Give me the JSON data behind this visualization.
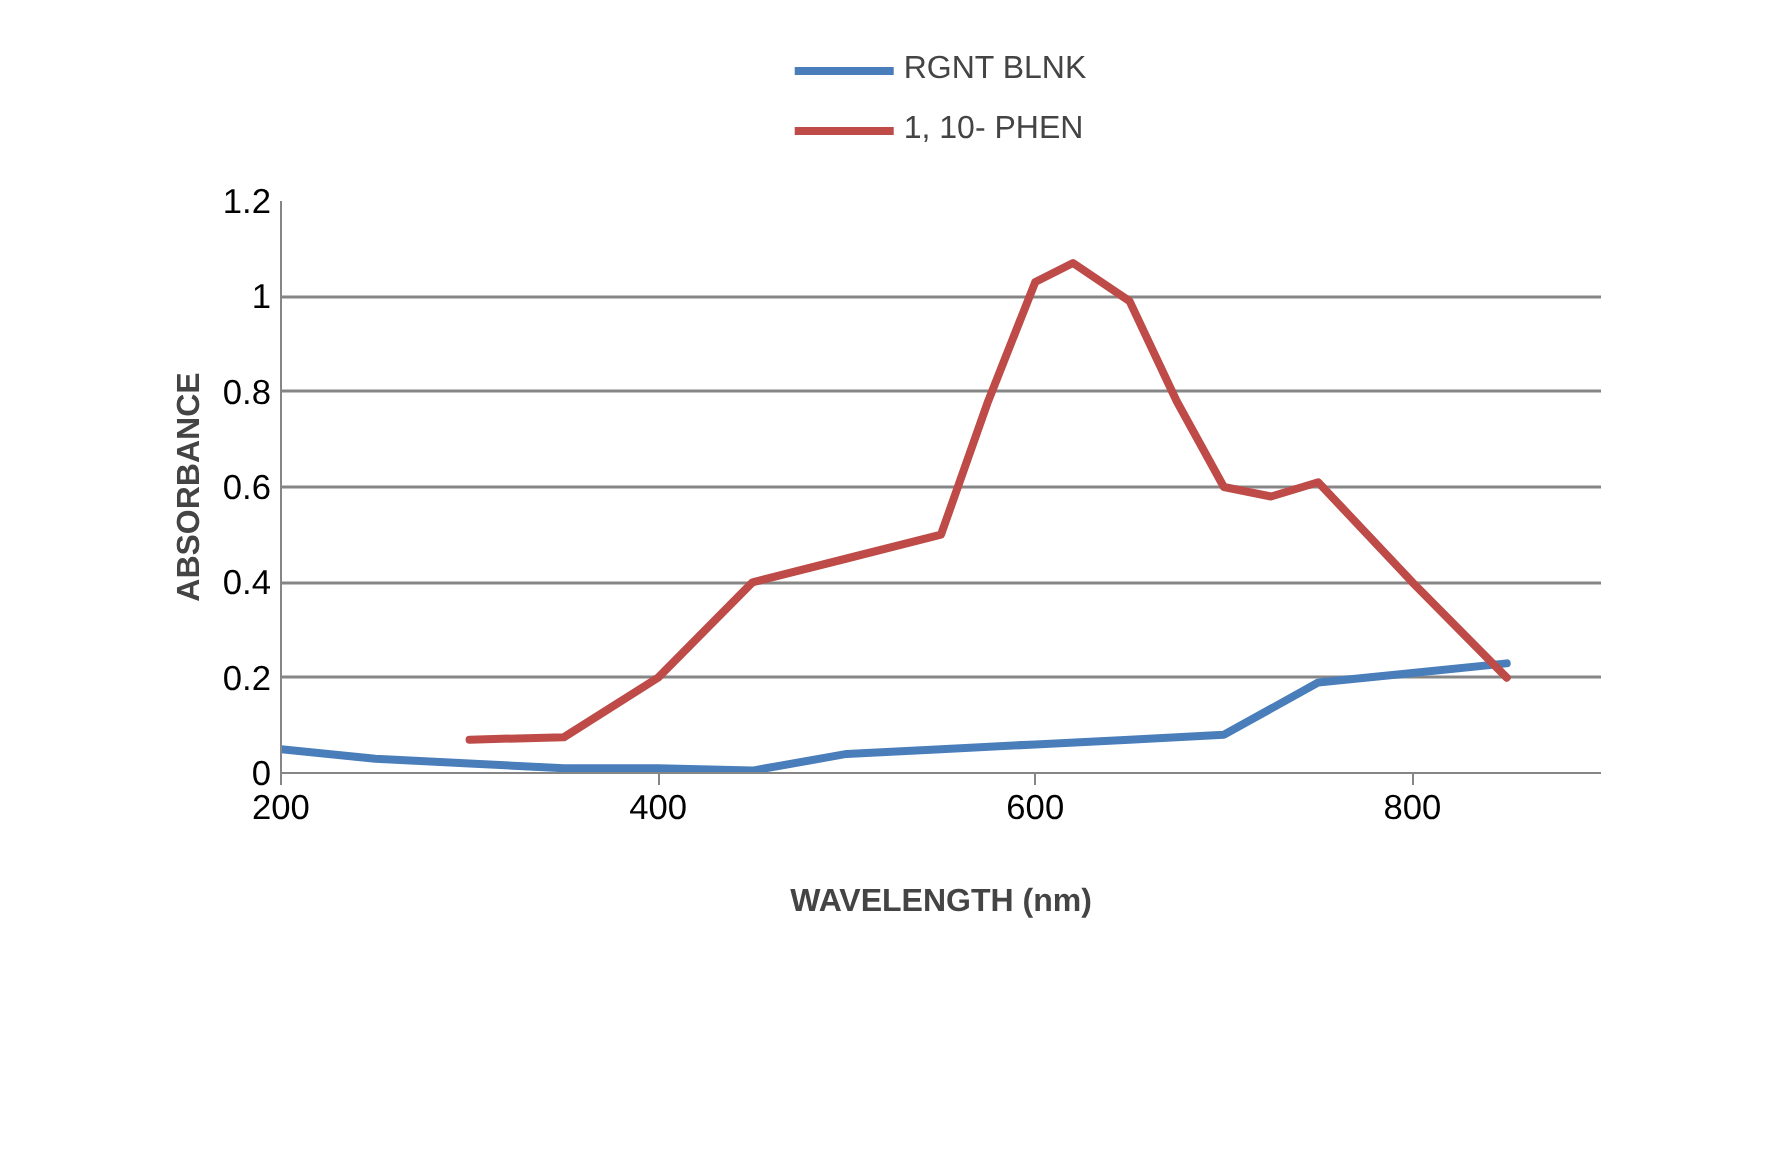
{
  "chart_data": {
    "type": "line",
    "xlabel": "WAVELENGTH (nm)",
    "ylabel": "ABSORBANCE",
    "xlim": [
      200,
      900
    ],
    "xticks": [
      200,
      400,
      600,
      800
    ],
    "ylim": [
      0,
      1.2
    ],
    "yticks": [
      0,
      0.2,
      0.4,
      0.6,
      0.8,
      1,
      1.2
    ],
    "grid": "y",
    "legend": "top",
    "marker": "none",
    "line_style": "solid",
    "series": [
      {
        "name": "RGNT BLNK",
        "color": "#4a7ebb",
        "x": [
          200,
          250,
          300,
          350,
          400,
          450,
          500,
          550,
          600,
          650,
          700,
          750,
          800,
          850
        ],
        "values": [
          0.05,
          0.03,
          0.02,
          0.01,
          0.01,
          0.005,
          0.04,
          0.05,
          0.06,
          0.07,
          0.08,
          0.19,
          0.21,
          0.23
        ]
      },
      {
        "name": "1, 10- PHEN",
        "color": "#be4b48",
        "x": [
          300,
          350,
          400,
          450,
          500,
          550,
          575,
          600,
          620,
          650,
          675,
          700,
          725,
          750,
          800,
          850
        ],
        "values": [
          0.07,
          0.075,
          0.2,
          0.4,
          0.45,
          0.5,
          0.78,
          1.03,
          1.07,
          0.99,
          0.78,
          0.6,
          0.58,
          0.61,
          0.4,
          0.2
        ]
      }
    ]
  }
}
